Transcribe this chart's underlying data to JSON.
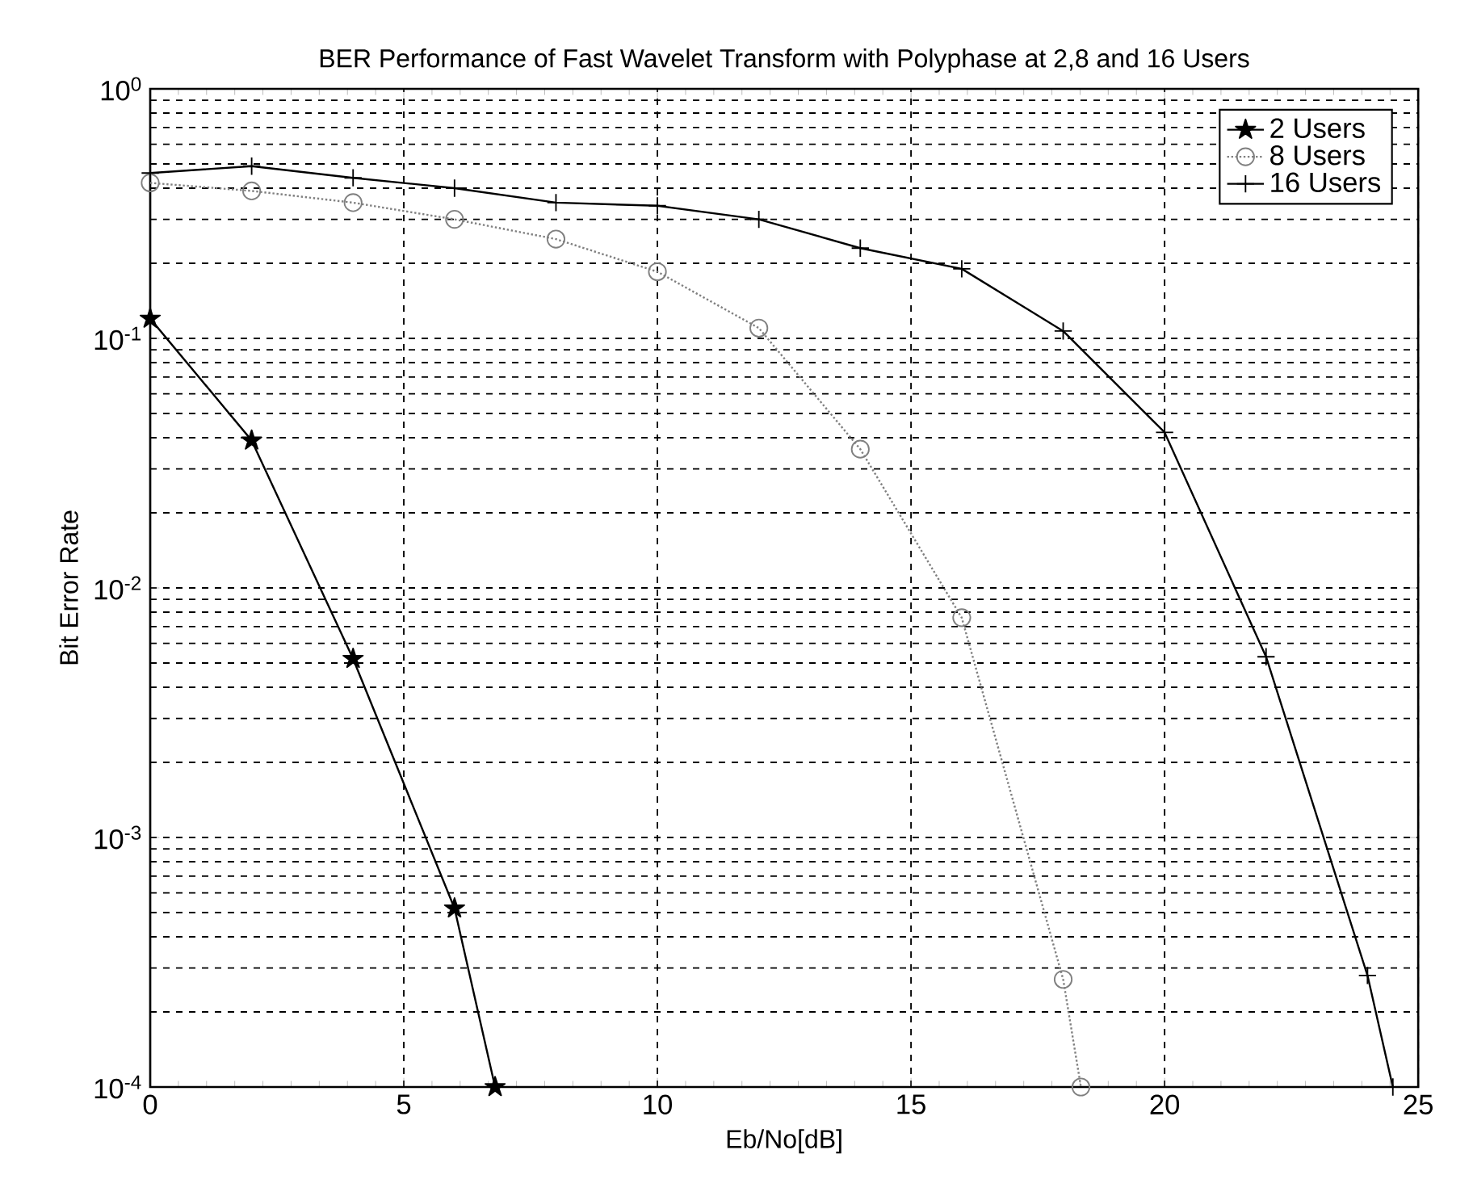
{
  "chart_data": {
    "type": "line",
    "title": "BER Performance of Fast Wavelet Transform with Polyphase at 2,8 and 16 Users",
    "xlabel": "Eb/No[dB]",
    "ylabel": "Bit Error Rate",
    "log": "y",
    "grid": true,
    "legend": "top right",
    "xlim": [
      0,
      25
    ],
    "xticks": [
      0,
      5,
      10,
      15,
      20,
      25
    ],
    "ylim": [
      0.0001,
      1
    ],
    "yticks": [
      {
        "value": 0.0001,
        "label": "10$^{-4}$"
      },
      {
        "value": 0.001,
        "label": "10$^{-3}$"
      },
      {
        "value": 0.01,
        "label": "10$^{-2}$"
      },
      {
        "value": 0.1,
        "label": "10$^{-1}$"
      },
      {
        "value": 1,
        "label": "10$^{0}$"
      }
    ],
    "series": [
      {
        "name": "2  Users",
        "color": "#000000",
        "marker": "star",
        "line_style": "solid",
        "x": [
          0,
          2,
          4,
          6,
          6.8
        ],
        "values": [
          0.12,
          0.039,
          0.0052,
          0.00052,
          0.0001
        ]
      },
      {
        "name": "8  Users",
        "color": "#808080",
        "marker": "circle",
        "line_style": "dotted",
        "x": [
          0,
          2,
          4,
          6,
          8,
          10,
          12,
          14,
          16,
          18,
          18.35
        ],
        "values": [
          0.42,
          0.39,
          0.35,
          0.3,
          0.25,
          0.185,
          0.11,
          0.036,
          0.0076,
          0.00027,
          0.0001
        ]
      },
      {
        "name": "16 Users",
        "color": "#000000",
        "marker": "cross",
        "line_style": "solid",
        "x": [
          0,
          2,
          4,
          6,
          8,
          10,
          12,
          14,
          16,
          18,
          20,
          22,
          24,
          24.5
        ],
        "values": [
          0.46,
          0.49,
          0.44,
          0.4,
          0.35,
          0.34,
          0.3,
          0.23,
          0.19,
          0.107,
          0.042,
          0.0053,
          0.00028,
          0.0001
        ]
      }
    ]
  }
}
